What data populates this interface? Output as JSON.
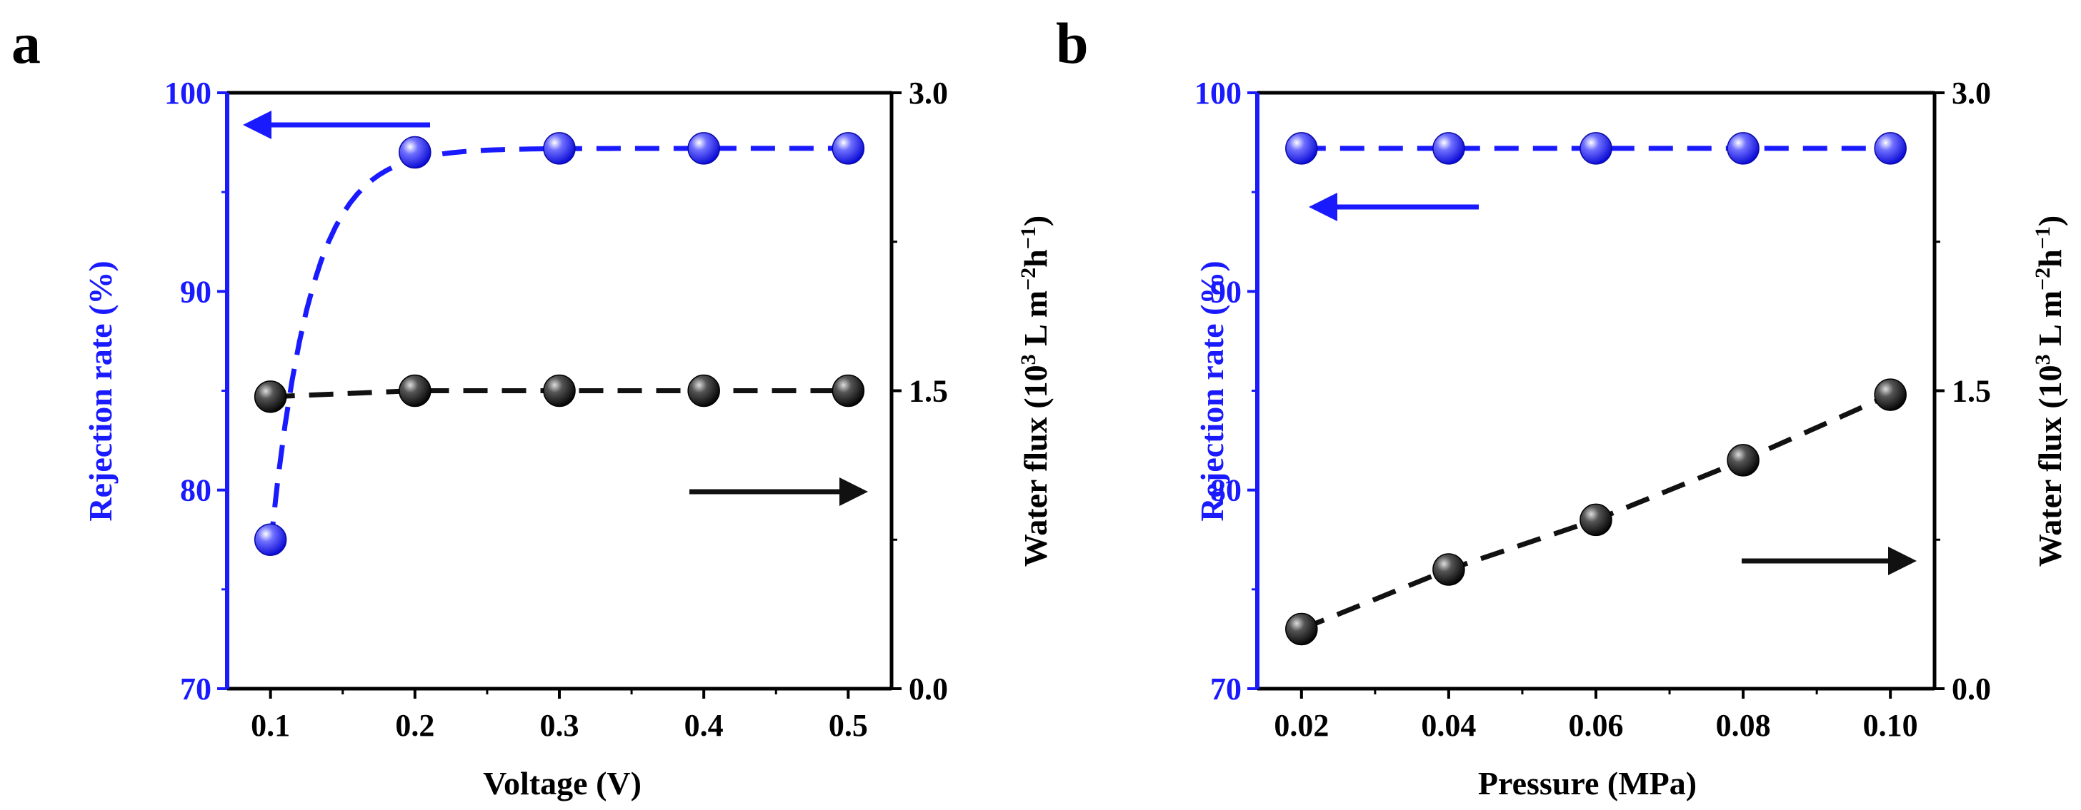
{
  "colors": {
    "blue": "#1a1aff",
    "black": "#111111",
    "axis_right": "#000000"
  },
  "chart_data": [
    {
      "type": "scatter",
      "panel_label": "a",
      "xlabel": "Voltage (V)",
      "ylabel_left": "Rejection rate (%)",
      "ylabel_right": "Water flux (10³ L m⁻²h⁻¹)",
      "ylabel_right_parts": [
        "Water flux (10",
        "3",
        " L m",
        "−2",
        "h",
        "−1",
        ")"
      ],
      "xlim": [
        0.07,
        0.53
      ],
      "x_ticks": [
        0.1,
        0.2,
        0.3,
        0.4,
        0.5
      ],
      "x_tick_labels": [
        "0.1",
        "0.2",
        "0.3",
        "0.4",
        "0.5"
      ],
      "ylim_left": [
        70,
        100
      ],
      "y_ticks_left": [
        70,
        80,
        90,
        100
      ],
      "y_tick_labels_left": [
        "70",
        "80",
        "90",
        "100"
      ],
      "ylim_right": [
        0.0,
        3.0
      ],
      "y_ticks_right": [
        0.0,
        1.5,
        3.0
      ],
      "y_tick_labels_right": [
        "0.0",
        "1.5",
        "3.0"
      ],
      "series": [
        {
          "name": "Rejection rate",
          "axis": "left",
          "color": "#1a1aff",
          "x": [
            0.1,
            0.2,
            0.3,
            0.4,
            0.5
          ],
          "y": [
            77.5,
            97.0,
            97.2,
            97.2,
            97.2
          ],
          "fit": "exp",
          "fit_params": {
            "a": 97.2,
            "b": 20.0,
            "x0": 0.1,
            "k": 36.0
          }
        },
        {
          "name": "Water flux",
          "axis": "right",
          "color": "#111111",
          "x": [
            0.1,
            0.2,
            0.3,
            0.4,
            0.5
          ],
          "y": [
            1.47,
            1.5,
            1.5,
            1.5,
            1.5
          ],
          "fit": "linear"
        }
      ],
      "arrows": [
        {
          "direction": "left",
          "axis_hint": "left",
          "color": "#1a1aff"
        },
        {
          "direction": "right",
          "axis_hint": "right",
          "color": "#111111"
        }
      ]
    },
    {
      "type": "scatter",
      "panel_label": "b",
      "xlabel": "Pressure (MPa)",
      "ylabel_left": "Rejection rate (%)",
      "ylabel_right": "Water flux (10³ L m⁻²h⁻¹)",
      "ylabel_right_parts": [
        "Water flux (10",
        "3",
        " L m",
        "−2",
        "h",
        "−1",
        ")"
      ],
      "xlim": [
        0.014,
        0.106
      ],
      "x_ticks": [
        0.02,
        0.04,
        0.06,
        0.08,
        0.1
      ],
      "x_tick_labels": [
        "0.02",
        "0.04",
        "0.06",
        "0.08",
        "0.10"
      ],
      "ylim_left": [
        70,
        100
      ],
      "y_ticks_left": [
        70,
        80,
        90,
        100
      ],
      "y_tick_labels_left": [
        "70",
        "80",
        "90",
        "100"
      ],
      "ylim_right": [
        0.0,
        3.0
      ],
      "y_ticks_right": [
        0.0,
        1.5,
        3.0
      ],
      "y_tick_labels_right": [
        "0.0",
        "1.5",
        "3.0"
      ],
      "series": [
        {
          "name": "Rejection rate",
          "axis": "left",
          "color": "#1a1aff",
          "x": [
            0.02,
            0.04,
            0.06,
            0.08,
            0.1
          ],
          "y": [
            97.2,
            97.2,
            97.2,
            97.2,
            97.2
          ],
          "fit": "linear"
        },
        {
          "name": "Water flux",
          "axis": "right",
          "color": "#111111",
          "x": [
            0.02,
            0.04,
            0.06,
            0.08,
            0.1
          ],
          "y": [
            0.3,
            0.6,
            0.85,
            1.15,
            1.48
          ],
          "fit": "linear"
        }
      ],
      "arrows": [
        {
          "direction": "left",
          "axis_hint": "left",
          "color": "#1a1aff"
        },
        {
          "direction": "right",
          "axis_hint": "right",
          "color": "#111111"
        }
      ]
    }
  ]
}
